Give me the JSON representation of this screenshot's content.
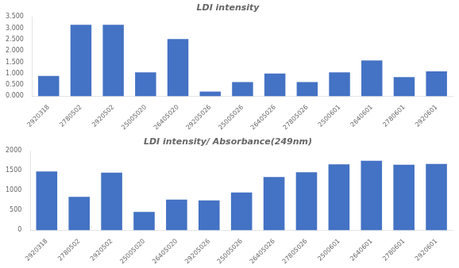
{
  "chart_data": [
    {
      "type": "bar",
      "title": "LDI intensity",
      "categories": [
        "2920318",
        "2780502",
        "2920502",
        "25005020",
        "26405020",
        "29205026",
        "25005026",
        "26405026",
        "27805026",
        "2500601",
        "2640601",
        "2780601",
        "2920601"
      ],
      "values": [
        0.9,
        3.15,
        3.15,
        1.05,
        2.52,
        0.21,
        0.63,
        1.0,
        0.63,
        1.05,
        1.575,
        0.84,
        1.1
      ],
      "color": "#4472C4",
      "ylim": [
        0,
        3.5
      ],
      "yticks": [
        {
          "value": 0.0,
          "label": "0.000"
        },
        {
          "value": 0.5,
          "label": "0.500"
        },
        {
          "value": 1.0,
          "label": "1.000"
        },
        {
          "value": 1.5,
          "label": "1.500"
        },
        {
          "value": 2.0,
          "label": "2.000"
        },
        {
          "value": 2.5,
          "label": "2.500"
        },
        {
          "value": 3.0,
          "label": "3.000"
        },
        {
          "value": 3.5,
          "label": "3.500"
        }
      ],
      "grid": false
    },
    {
      "type": "bar",
      "title": "LDI intensity/ Absorbance(249nm)",
      "categories": [
        "2920318",
        "2780502",
        "2920502",
        "25005020",
        "26405020",
        "29205026",
        "25005026",
        "26405026",
        "27805026",
        "2500601",
        "2640601",
        "2780601",
        "2920601"
      ],
      "values": [
        1480,
        840,
        1450,
        460,
        770,
        750,
        950,
        1340,
        1460,
        1660,
        1750,
        1650,
        1670
      ],
      "color": "#4472C4",
      "ylim": [
        0,
        2000
      ],
      "yticks": [
        0,
        500,
        1000,
        1500,
        2000
      ],
      "grid": false
    }
  ]
}
